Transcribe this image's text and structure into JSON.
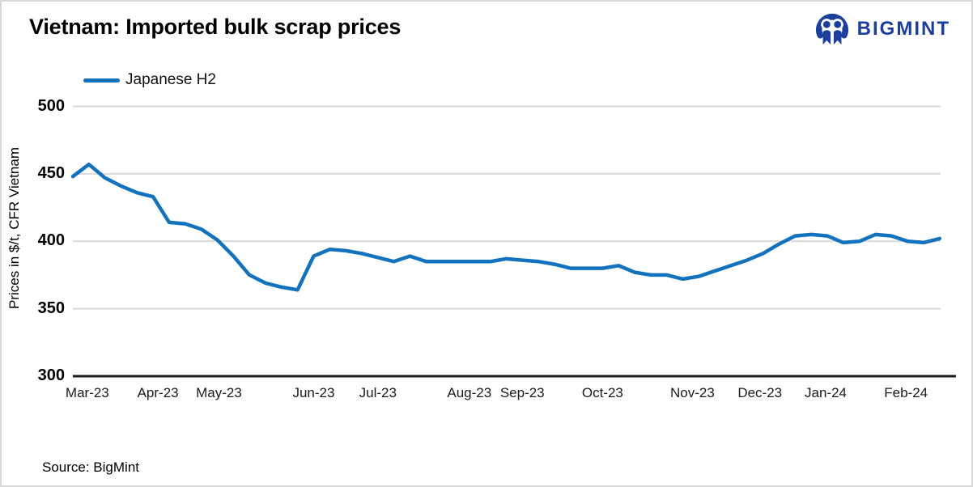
{
  "page": {
    "title": "Vietnam: Imported bulk scrap prices",
    "source": "Source: BigMint"
  },
  "brand": {
    "name": "BIGMINT",
    "color": "#1c3f9e",
    "icon": "bigmint-people-mark"
  },
  "legend": {
    "label": "Japanese H2",
    "color": "#1272bd"
  },
  "chart_data": {
    "type": "line",
    "title": "Vietnam: Imported bulk scrap prices",
    "xlabel": "",
    "ylabel": "Prices in $/t, CFR Vietnam",
    "ylim": [
      300,
      500
    ],
    "y_ticks": [
      300,
      350,
      400,
      450,
      500
    ],
    "grid": "horizontal",
    "gridline_color": "#d9d9d9",
    "axis_color": "#1a1a1a",
    "legend_position": "top-left",
    "x_unit": "weekly",
    "x_tick_labels": [
      "Mar-23",
      "Apr-23",
      "May-23",
      "Jun-23",
      "Jul-23",
      "Aug-23",
      "Sep-23",
      "Oct-23",
      "Nov-23",
      "Dec-23",
      "Jan-24",
      "Feb-24"
    ],
    "x_tick_weeks": [
      0.9,
      5.3,
      9.1,
      15.0,
      19.0,
      24.7,
      28.0,
      33.0,
      38.6,
      42.8,
      46.9,
      51.9
    ],
    "series": [
      {
        "name": "Japanese H2",
        "color": "#1272bd",
        "values": [
          448,
          457,
          447,
          441,
          436,
          433,
          414,
          413,
          409,
          401,
          389,
          375,
          369,
          366,
          364,
          389,
          394,
          393,
          391,
          388,
          385,
          389,
          385,
          385,
          385,
          385,
          385,
          387,
          386,
          385,
          383,
          380,
          380,
          380,
          382,
          377,
          375,
          375,
          372,
          374,
          378,
          382,
          386,
          391,
          398,
          404,
          405,
          404,
          399,
          400,
          405,
          404,
          400,
          399,
          402
        ]
      }
    ],
    "source": "Source: BigMint"
  }
}
